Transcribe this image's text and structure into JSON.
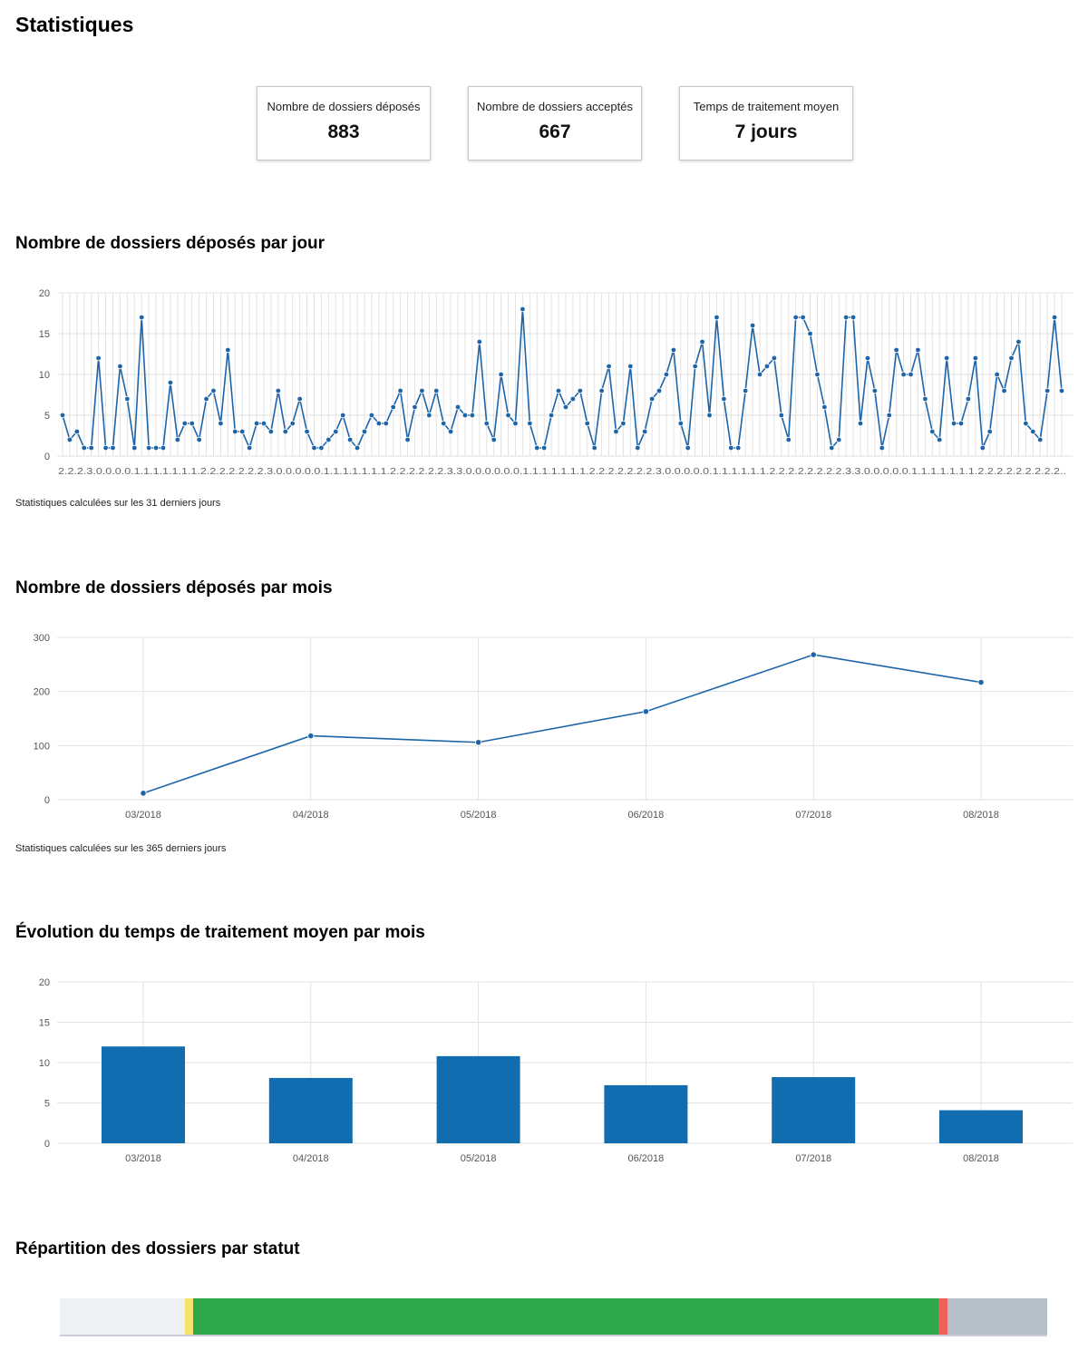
{
  "page_title": "Statistiques",
  "cards": [
    {
      "label": "Nombre de dossiers déposés",
      "value": "883"
    },
    {
      "label": "Nombre de dossiers acceptés",
      "value": "667"
    },
    {
      "label": "Temps de traitement moyen",
      "value": "7 jours"
    }
  ],
  "sections": {
    "daily_title": "Nombre de dossiers déposés par jour",
    "daily_note": "Statistiques calculées sur les 31 derniers jours",
    "monthly_title": "Nombre de dossiers déposés par mois",
    "monthly_note": "Statistiques calculées sur les 365 derniers jours",
    "processing_title": "Évolution du temps de traitement moyen par mois",
    "status_title": "Répartition des dossiers par statut"
  },
  "colors": {
    "line": "#1d64a8",
    "bar": "#116db0",
    "grid": "#e2e2e2",
    "status_segments": [
      "#eef1f4",
      "#f6e26b",
      "#2ea84a",
      "#f0605a",
      "#b7c0c9"
    ]
  },
  "chart_data": [
    {
      "type": "line",
      "title": "Nombre de dossiers déposés par jour",
      "ylim": [
        0,
        20
      ],
      "yticks": [
        0,
        5,
        10,
        15,
        20
      ],
      "x_tick_text": "2.2.2.3.0.0.0.0.1.1.1.1.1.1.1.2.2.2.2.2.2.2.3.0.0.0.0.0.1.1.1.1.1.1.1.2.2.2.2.2.2.3.3.0.0.0.0.0.0.1.1.1.1.1.1.1.2.2.2.2.2.2.2.3.0.0.0.0.0.1.1.1.1.1.1.2.2.2.2.2.2.2.2.3.3.0.0.0.0.0.1.1.1.1.1.1.1.2.2.2.2.2.2.2.2.2..",
      "values": [
        5,
        2,
        3,
        1,
        1,
        12,
        1,
        1,
        11,
        7,
        1,
        17,
        1,
        1,
        1,
        9,
        2,
        4,
        4,
        2,
        7,
        8,
        4,
        13,
        3,
        3,
        1,
        4,
        4,
        3,
        8,
        3,
        4,
        7,
        3,
        1,
        1,
        2,
        3,
        5,
        2,
        1,
        3,
        5,
        4,
        4,
        6,
        8,
        2,
        6,
        8,
        5,
        8,
        4,
        3,
        6,
        5,
        5,
        14,
        4,
        2,
        10,
        5,
        4,
        18,
        4,
        1,
        1,
        5,
        8,
        6,
        7,
        8,
        4,
        1,
        8,
        11,
        3,
        4,
        11,
        1,
        3,
        7,
        8,
        10,
        13,
        4,
        1,
        11,
        14,
        5,
        17,
        7,
        1,
        1,
        8,
        16,
        10,
        11,
        12,
        5,
        2,
        17,
        17,
        15,
        10,
        6,
        1,
        2,
        17,
        17,
        4,
        12,
        8,
        1,
        5,
        13,
        10,
        10,
        13,
        7,
        3,
        2,
        12,
        4,
        4,
        7,
        12,
        1,
        3,
        10,
        8,
        12,
        14,
        4,
        3,
        2,
        8,
        17,
        8
      ]
    },
    {
      "type": "line",
      "title": "Nombre de dossiers déposés par mois",
      "categories": [
        "03/2018",
        "04/2018",
        "05/2018",
        "06/2018",
        "07/2018",
        "08/2018"
      ],
      "values": [
        12,
        118,
        106,
        163,
        268,
        217
      ],
      "ylim": [
        0,
        300
      ],
      "yticks": [
        0,
        100,
        200,
        300
      ]
    },
    {
      "type": "bar",
      "title": "Évolution du temps de traitement moyen par mois",
      "categories": [
        "03/2018",
        "04/2018",
        "05/2018",
        "06/2018",
        "07/2018",
        "08/2018"
      ],
      "values": [
        12,
        8.1,
        10.8,
        7.2,
        8.2,
        4.1
      ],
      "ylim": [
        0,
        20
      ],
      "yticks": [
        0,
        5,
        10,
        15,
        20
      ]
    },
    {
      "type": "bar",
      "title": "Répartition des dossiers par statut",
      "segment_fractions": [
        0.127,
        0.008,
        0.755,
        0.009,
        0.101
      ]
    }
  ]
}
